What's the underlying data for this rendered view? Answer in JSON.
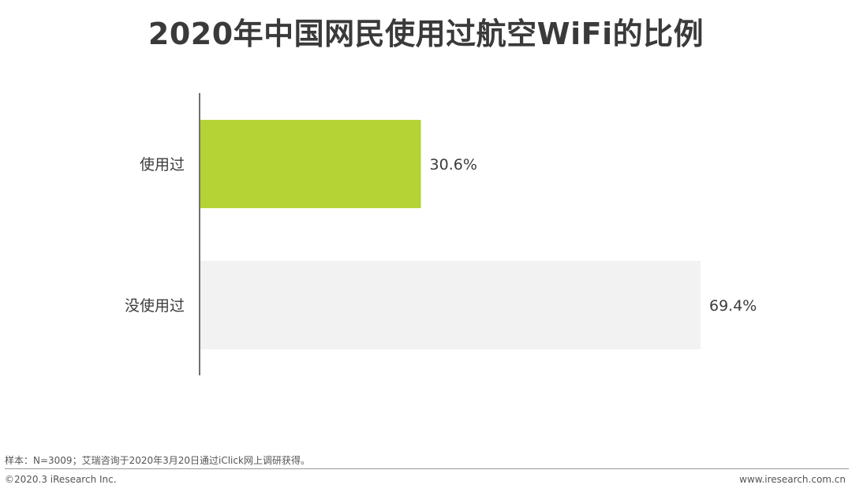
{
  "colors": {
    "used": "#b5d334",
    "not_used": "#f2f2f2",
    "axis": "#404040",
    "label": "#3c3c3c"
  },
  "chart_data": {
    "type": "bar",
    "orientation": "horizontal",
    "title": "2020年中国网民使用过航空WiFi的比例",
    "categories": [
      "使用过",
      "没使用过"
    ],
    "values": [
      30.6,
      69.4
    ],
    "value_labels": [
      "30.6%",
      "69.4%"
    ],
    "unit": "%",
    "xlim": [
      0,
      100
    ],
    "grid": false,
    "legend": "none"
  },
  "footer": {
    "note": "样本：N=3009；艾瑞咨询于2020年3月20日通过iClick网上调研获得。",
    "copyright": "©2020.3 iResearch Inc.",
    "website": "www.iresearch.com.cn"
  }
}
